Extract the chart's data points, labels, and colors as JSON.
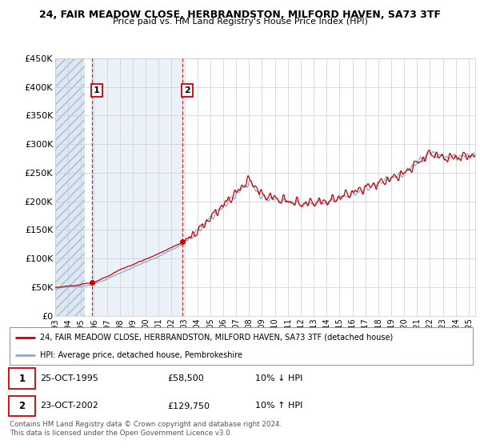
{
  "title1": "24, FAIR MEADOW CLOSE, HERBRANDSTON, MILFORD HAVEN, SA73 3TF",
  "title2": "Price paid vs. HM Land Registry's House Price Index (HPI)",
  "ylabel_ticks": [
    "£0",
    "£50K",
    "£100K",
    "£150K",
    "£200K",
    "£250K",
    "£300K",
    "£350K",
    "£400K",
    "£450K"
  ],
  "ytick_values": [
    0,
    50000,
    100000,
    150000,
    200000,
    250000,
    300000,
    350000,
    400000,
    450000
  ],
  "purchase1": {
    "date_x": 1995.82,
    "price": 58500,
    "label": "1"
  },
  "purchase2": {
    "date_x": 2002.82,
    "price": 129750,
    "label": "2"
  },
  "legend_red": "24, FAIR MEADOW CLOSE, HERBRANDSTON, MILFORD HAVEN, SA73 3TF (detached house)",
  "legend_blue": "HPI: Average price, detached house, Pembrokeshire",
  "table_row1": [
    "1",
    "25-OCT-1995",
    "£58,500",
    "10% ↓ HPI"
  ],
  "table_row2": [
    "2",
    "23-OCT-2002",
    "£129,750",
    "10% ↑ HPI"
  ],
  "footer": "Contains HM Land Registry data © Crown copyright and database right 2024.\nThis data is licensed under the Open Government Licence v3.0.",
  "grid_color": "#cccccc",
  "red_line_color": "#cc0000",
  "blue_line_color": "#88aacc",
  "dashed_line_color": "#cc0000",
  "hatch_fill_color": "#dce8f4",
  "shade_between_color": "#dde8f5",
  "xmin": 1993,
  "xmax": 2025.5,
  "ymin": 0,
  "ymax": 450000
}
